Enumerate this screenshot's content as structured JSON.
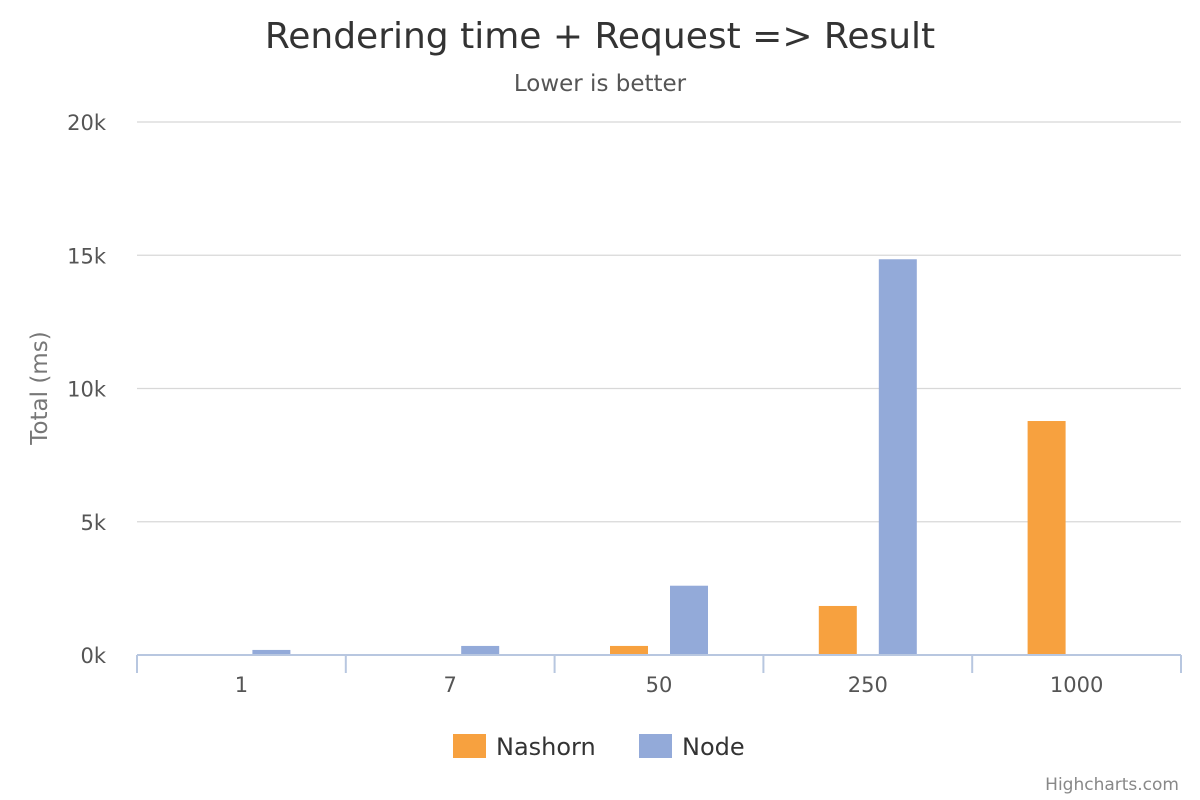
{
  "chart_data": {
    "type": "bar",
    "title": "Rendering time + Request => Result",
    "subtitle": "Lower is better",
    "xlabel": "",
    "ylabel": "Total (ms)",
    "categories": [
      "1",
      "7",
      "50",
      "250",
      "1000"
    ],
    "ylim": [
      0,
      20000
    ],
    "yticks": [
      0,
      5000,
      10000,
      15000,
      20000
    ],
    "ytick_labels": [
      "0k",
      "5k",
      "10k",
      "15k",
      "20k"
    ],
    "grid": true,
    "legend": "bottom-center",
    "series": [
      {
        "name": "Nashorn",
        "color": "#f7a13f",
        "values": [
          0,
          0,
          340,
          1840,
          8780
        ]
      },
      {
        "name": "Node",
        "color": "#93aad9",
        "values": [
          190,
          340,
          2600,
          14850,
          0
        ]
      }
    ]
  },
  "credits": "Highcharts.com"
}
